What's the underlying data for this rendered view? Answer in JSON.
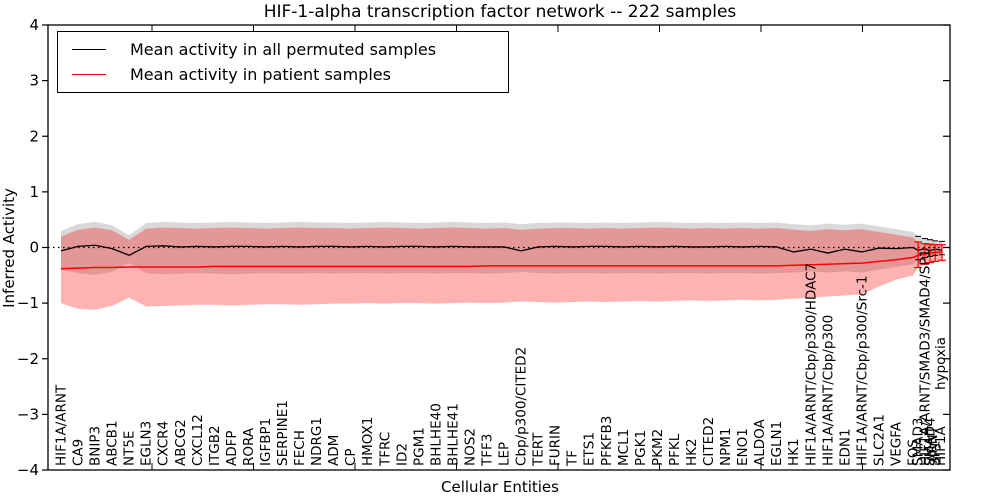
{
  "figure": {
    "title": "HIF-1-alpha transcription factor network -- 222 samples",
    "xlabel": "Cellular Entities",
    "ylabel": "Inferred Activity"
  },
  "legend": {
    "entries": [
      {
        "label": "Mean activity in all permuted samples",
        "color": "#000000"
      },
      {
        "label": "Mean activity in patient samples",
        "color": "#ff0000"
      }
    ]
  },
  "chart_data": {
    "type": "line",
    "title": "HIF-1-alpha transcription factor network -- 222 samples",
    "xlabel": "Cellular Entities",
    "ylabel": "Inferred Activity",
    "ylim": [
      -4,
      4
    ],
    "yticks": [
      -4,
      -3,
      -2,
      -1,
      0,
      1,
      2,
      3,
      4
    ],
    "zero_line": true,
    "legend_position": "upper left",
    "categories": [
      "HIF1A/ARNT",
      "CA9",
      "BNIP3",
      "ABCB1",
      "NT5E",
      "EGLN3",
      "CXCR4",
      "ABCG2",
      "CXCL12",
      "ITGB2",
      "ADFP",
      "RORA",
      "IGFBP1",
      "SERPINE1",
      "FECH",
      "NDRG1",
      "ADM",
      "CP",
      "HMOX1",
      "TFRC",
      "ID2",
      "PGM1",
      "BHLHE40",
      "BHLHE41",
      "NOS2",
      "TFF3",
      "LEP",
      "Cbp/p300/CITED2",
      "TERT",
      "FURIN",
      "TF",
      "ETS1",
      "PFKFB3",
      "MCL1",
      "PGK1",
      "PKM2",
      "PFKL",
      "HK2",
      "CITED2",
      "NPM1",
      "ENO1",
      "ALDOA",
      "EGLN1",
      "HK1",
      "HIF1A/ARNT/Cbp/p300/HDAC7",
      "HIF1A/ARNT/Cbp/p300",
      "EDN1",
      "HIF1A/ARNT/Cbp/p300/Src-1",
      "SLC2A1",
      "VEGFA",
      "FOS"
    ],
    "cluster_labels": [
      {
        "text": "SMAD3",
        "x": 50.3,
        "rise": 0
      },
      {
        "text": "HIF1A/ARNT/SMAD3/SMAD4/SP1",
        "x": 50.7,
        "rise": 0
      },
      {
        "text": "SMAD4",
        "x": 51.0,
        "rise": 0
      },
      {
        "text": "ARNT",
        "x": 51.15,
        "rise": 3
      },
      {
        "text": "SP1",
        "x": 51.3,
        "rise": 0
      },
      {
        "text": "HIF1A",
        "x": 51.6,
        "rise": 0
      },
      {
        "text": "hypoxia",
        "x": 51.6,
        "rise": 76
      }
    ],
    "x": [
      0,
      1,
      2,
      3,
      4,
      5,
      6,
      7,
      8,
      9,
      10,
      11,
      12,
      13,
      14,
      15,
      16,
      17,
      18,
      19,
      20,
      21,
      22,
      23,
      24,
      25,
      26,
      27,
      28,
      29,
      30,
      31,
      32,
      33,
      34,
      35,
      36,
      37,
      38,
      39,
      40,
      41,
      42,
      43,
      44,
      45,
      46,
      47,
      48,
      49,
      50,
      50.3,
      50.7,
      51.0,
      51.3,
      51.7
    ],
    "series": [
      {
        "name": "Mean activity in all permuted samples",
        "color": "#000000",
        "band_color": "rgba(0,0,0,0.15)",
        "values": [
          -0.06,
          0.02,
          0.04,
          -0.02,
          -0.14,
          0.02,
          0.03,
          0.01,
          0.02,
          0.01,
          0.02,
          0.02,
          0.01,
          0.02,
          0.01,
          0.02,
          0.02,
          0.01,
          0.02,
          0.01,
          0.02,
          0.02,
          0.01,
          0.02,
          0.01,
          0.01,
          0.01,
          -0.06,
          0.01,
          0.02,
          0.01,
          0.02,
          0.02,
          0.01,
          0.02,
          0.01,
          0.02,
          0.01,
          0.01,
          0.02,
          0.01,
          0.02,
          0.01,
          -0.08,
          -0.03,
          -0.1,
          -0.03,
          -0.08,
          -0.01,
          -0.02,
          0.0,
          -0.05,
          -0.02,
          -0.06,
          -0.03,
          -0.05
        ],
        "band_upper": [
          0.3,
          0.42,
          0.46,
          0.4,
          0.22,
          0.44,
          0.46,
          0.45,
          0.44,
          0.45,
          0.46,
          0.45,
          0.44,
          0.45,
          0.46,
          0.45,
          0.45,
          0.44,
          0.45,
          0.46,
          0.45,
          0.44,
          0.45,
          0.46,
          0.45,
          0.44,
          0.45,
          0.42,
          0.44,
          0.45,
          0.45,
          0.44,
          0.45,
          0.44,
          0.45,
          0.46,
          0.45,
          0.44,
          0.45,
          0.44,
          0.45,
          0.44,
          0.45,
          0.42,
          0.4,
          0.43,
          0.41,
          0.43,
          0.38,
          0.33,
          0.28,
          0.2,
          0.16,
          0.14,
          0.12,
          0.11
        ],
        "band_lower": [
          -0.4,
          -0.46,
          -0.49,
          -0.44,
          -0.28,
          -0.46,
          -0.48,
          -0.47,
          -0.46,
          -0.47,
          -0.48,
          -0.47,
          -0.46,
          -0.47,
          -0.47,
          -0.46,
          -0.47,
          -0.46,
          -0.46,
          -0.47,
          -0.46,
          -0.46,
          -0.47,
          -0.46,
          -0.46,
          -0.47,
          -0.46,
          -0.44,
          -0.46,
          -0.47,
          -0.46,
          -0.46,
          -0.47,
          -0.46,
          -0.46,
          -0.47,
          -0.46,
          -0.46,
          -0.47,
          -0.46,
          -0.46,
          -0.47,
          -0.46,
          -0.45,
          -0.43,
          -0.45,
          -0.43,
          -0.45,
          -0.4,
          -0.35,
          -0.3,
          -0.22,
          -0.18,
          -0.16,
          -0.14,
          -0.13
        ]
      },
      {
        "name": "Mean activity in patient samples",
        "color": "#ff0000",
        "band_color": "rgba(255,0,0,0.30)",
        "values": [
          -0.38,
          -0.37,
          -0.36,
          -0.36,
          -0.35,
          -0.35,
          -0.35,
          -0.35,
          -0.35,
          -0.34,
          -0.34,
          -0.34,
          -0.34,
          -0.34,
          -0.34,
          -0.34,
          -0.34,
          -0.34,
          -0.34,
          -0.34,
          -0.34,
          -0.34,
          -0.34,
          -0.34,
          -0.34,
          -0.33,
          -0.33,
          -0.33,
          -0.33,
          -0.33,
          -0.33,
          -0.33,
          -0.33,
          -0.33,
          -0.33,
          -0.33,
          -0.33,
          -0.33,
          -0.33,
          -0.33,
          -0.33,
          -0.33,
          -0.33,
          -0.32,
          -0.31,
          -0.3,
          -0.29,
          -0.28,
          -0.25,
          -0.22,
          -0.18,
          -0.14,
          -0.12,
          -0.1,
          -0.09,
          -0.08
        ],
        "band_upper": [
          0.2,
          0.32,
          0.36,
          0.31,
          0.14,
          0.34,
          0.36,
          0.35,
          0.34,
          0.35,
          0.36,
          0.35,
          0.34,
          0.35,
          0.36,
          0.35,
          0.35,
          0.34,
          0.35,
          0.36,
          0.35,
          0.34,
          0.35,
          0.36,
          0.35,
          0.34,
          0.35,
          0.32,
          0.34,
          0.35,
          0.35,
          0.34,
          0.35,
          0.34,
          0.35,
          0.36,
          0.35,
          0.34,
          0.35,
          0.34,
          0.35,
          0.34,
          0.35,
          0.32,
          0.3,
          0.33,
          0.31,
          0.33,
          0.28,
          0.23,
          0.18,
          0.1,
          0.07,
          0.06,
          0.05,
          0.05
        ],
        "band_lower": [
          -1.0,
          -1.1,
          -1.12,
          -1.05,
          -0.9,
          -1.06,
          -1.05,
          -1.04,
          -1.03,
          -1.03,
          -1.04,
          -1.03,
          -1.02,
          -1.02,
          -1.03,
          -1.02,
          -1.01,
          -1.01,
          -1.0,
          -1.01,
          -1.0,
          -1.0,
          -1.01,
          -1.0,
          -0.99,
          -1.0,
          -0.99,
          -0.97,
          -0.98,
          -0.99,
          -0.98,
          -0.97,
          -0.98,
          -0.97,
          -0.96,
          -0.97,
          -0.96,
          -0.95,
          -0.96,
          -0.95,
          -0.94,
          -0.95,
          -0.94,
          -0.92,
          -0.9,
          -0.88,
          -0.86,
          -0.84,
          -0.7,
          -0.58,
          -0.5,
          -0.36,
          -0.3,
          -0.27,
          -0.25,
          -0.23
        ]
      }
    ]
  }
}
